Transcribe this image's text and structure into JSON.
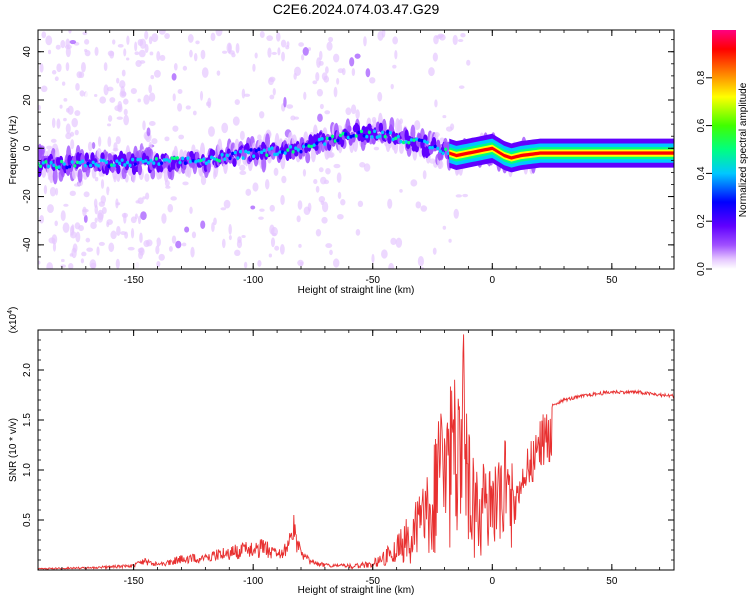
{
  "title": "C2E6.2024.074.03.47.G29",
  "colors": {
    "snr_line": "#e83030",
    "background": "#ffffff",
    "colormap": [
      "#ffffff",
      "#e6c8ff",
      "#a050ff",
      "#6000ff",
      "#0000ff",
      "#00c8ff",
      "#00ff80",
      "#40ff00",
      "#ffff00",
      "#ff8000",
      "#ff0000",
      "#ff0080"
    ]
  },
  "chart_data": [
    {
      "type": "heatmap",
      "xlabel": "Height of straight line (km)",
      "ylabel": "Frequency (Hz)",
      "xlim": [
        -190,
        76
      ],
      "ylim": [
        -50,
        49
      ],
      "x_ticks": [
        -150,
        -100,
        -50,
        0,
        50
      ],
      "y_ticks": [
        -40,
        -20,
        0,
        20,
        40
      ],
      "ridge": {
        "x": [
          -190,
          -150,
          -120,
          -100,
          -80,
          -60,
          -45,
          -30,
          -15,
          -5,
          0,
          5,
          8,
          12,
          20,
          76
        ],
        "freq": [
          -7,
          -6,
          -5,
          -2,
          0,
          6,
          6,
          2,
          -3,
          -1,
          0,
          -3,
          -4,
          -3,
          -2,
          -2
        ]
      },
      "colorbar": {
        "label": "Normalized spectral amplitude",
        "range": [
          0.0,
          1.0
        ],
        "ticks": [
          "0.0",
          "0.2",
          "0.4",
          "0.6",
          "0.8"
        ]
      }
    },
    {
      "type": "line",
      "xlabel": "Height of straight line (km)",
      "ylabel": "SNR (10 * v/v)",
      "y_multiplier": "(x10",
      "y_multiplier_exp": "4",
      "xlim": [
        -190,
        76
      ],
      "ylim": [
        0,
        24000
      ],
      "x_ticks": [
        -150,
        -100,
        -50,
        0,
        50
      ],
      "y_ticks": [
        5000,
        10000,
        15000,
        20000
      ],
      "y_tick_labels": [
        "0.5",
        "1.0",
        "1.5",
        "2.0"
      ],
      "series": [
        {
          "x": [
            -190,
            -170,
            -150,
            -146,
            -140,
            -130,
            -120,
            -110,
            -100,
            -95,
            -90,
            -85,
            -83,
            -80,
            -75,
            -70,
            -65,
            -60,
            -55,
            -50,
            -45,
            -40,
            -35,
            -30,
            -25,
            -22,
            -20,
            -17,
            -14,
            -12,
            -10,
            -8,
            -5,
            -2,
            0,
            3,
            5,
            8,
            10,
            12,
            15,
            18,
            20,
            25,
            30,
            40,
            50,
            60,
            70,
            76
          ],
          "y": [
            200,
            300,
            600,
            1200,
            800,
            1500,
            1800,
            2500,
            3000,
            3200,
            2000,
            3500,
            5500,
            2000,
            1000,
            700,
            600,
            600,
            700,
            1000,
            2000,
            3500,
            5500,
            8000,
            11000,
            19000,
            15000,
            20000,
            21000,
            24000,
            14000,
            12000,
            10500,
            11000,
            11500,
            12500,
            13500,
            12000,
            8500,
            11000,
            12500,
            14000,
            15500,
            16500,
            17000,
            17500,
            17800,
            17800,
            17500,
            17400
          ]
        }
      ]
    }
  ]
}
